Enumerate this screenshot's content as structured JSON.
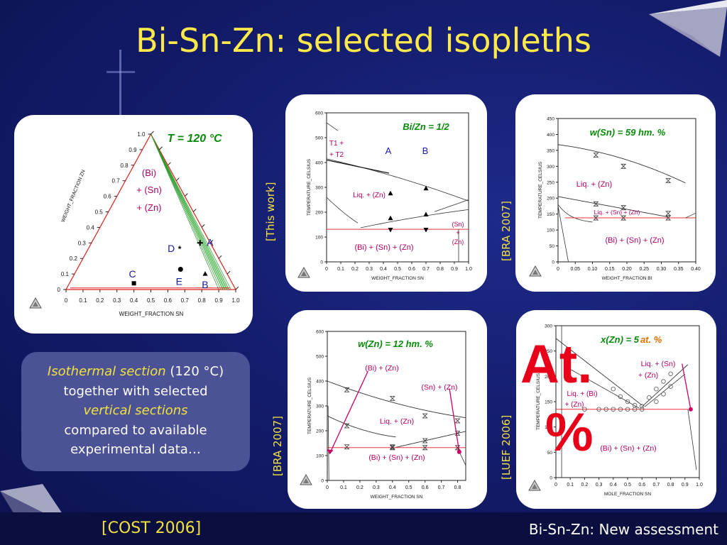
{
  "title": {
    "part1": "Bi-Sn-Zn:",
    "part2": "selected isopleths"
  },
  "citations": {
    "this_work": "[This work]",
    "bra1": "[BRA 2007]",
    "bra2": "[BRA 2007]",
    "luef": "[LUEF 2006]",
    "cost": "[COST 2006]"
  },
  "footer": "Bi-Sn-Zn: New assessment",
  "textbox": {
    "l1_italic": "Isothermal section",
    "l1_rest": " (120 °C)",
    "l2": "together with selected",
    "l3": "vertical sections",
    "l4": "compared to available",
    "l5": "experimental data…"
  },
  "stamp": {
    "line1": "At.",
    "line2": "%"
  },
  "colors": {
    "background": "#141d6e",
    "title": "#ffe84a",
    "citation": "#f2e23e",
    "green_label": "#0a8a0a",
    "phase_label": "#b00060",
    "point_label": "#1a1aa0",
    "stamp": "#e8001a",
    "red_line": "#e8333a"
  },
  "chart_data": [
    {
      "type": "ternary",
      "title": "T = 120 °C",
      "xlabel": "WEIGHT_FRACTION SN",
      "ylabel": "WEIGHT_FRACTION ZN",
      "ticks": [
        "0",
        "0.1",
        "0.2",
        "0.3",
        "0.4",
        "0.5",
        "0.6",
        "0.7",
        "0.8",
        "0.9",
        "1.0"
      ],
      "phase_labels": [
        "(Bi)",
        "+ (Sn)",
        "+ (Zn)"
      ],
      "composition_points": [
        {
          "label": "A",
          "sn": 0.64,
          "zn": 0.3
        },
        {
          "label": "B",
          "sn": 0.77,
          "zn": 0.1
        },
        {
          "label": "C",
          "sn": 0.38,
          "zn": 0.04
        },
        {
          "label": "D",
          "sn": 0.54,
          "zn": 0.26
        },
        {
          "label": "E",
          "sn": 0.61,
          "zn": 0.13
        }
      ]
    },
    {
      "type": "line",
      "title": "Bi/Zn = 1/2",
      "xlabel": "WEIGHT_FRACTION SN",
      "ylabel": "TEMPERATURE_CELSIUS",
      "xlim": [
        0,
        1
      ],
      "ylim": [
        0,
        600
      ],
      "xticks": [
        "0",
        "0.1",
        "0.2",
        "0.3",
        "0.4",
        "0.5",
        "0.6",
        "0.7",
        "0.8",
        "0.9",
        "1.0"
      ],
      "yticks": [
        "0",
        "100",
        "200",
        "300",
        "400",
        "500",
        "600"
      ],
      "point_labels": [
        "A",
        "B"
      ],
      "phase_labels": [
        "T1 +",
        "+ T2",
        "Liq. + (Zn)",
        "(Sn)",
        "+",
        "(Zn)",
        "(Bi) + (Sn) + (Zn)"
      ],
      "experimental_points": [
        {
          "x": 0.45,
          "y": 275
        },
        {
          "x": 0.7,
          "y": 295
        },
        {
          "x": 0.45,
          "y": 175
        },
        {
          "x": 0.7,
          "y": 190
        },
        {
          "x": 0.45,
          "y": 130
        },
        {
          "x": 0.7,
          "y": 130
        }
      ]
    },
    {
      "type": "line",
      "title": "w(Sn) = 59 hm. %",
      "xlabel": "WEIGHT_FRACTION BI",
      "ylabel": "TEMPERATURE_CELSIUS",
      "xlim": [
        0,
        0.4
      ],
      "ylim": [
        0,
        450
      ],
      "xticks": [
        "0",
        "0.05",
        "0.10",
        "0.15",
        "0.20",
        "0.25",
        "0.30",
        "0.35",
        "0.40"
      ],
      "yticks": [
        "0",
        "50",
        "100",
        "150",
        "200",
        "250",
        "300",
        "350",
        "400",
        "450"
      ],
      "phase_labels": [
        "Liq. + (Zn)",
        "Liq. + (Sn) + (Zn)",
        "(Bi) + (Sn) + (Zn)"
      ],
      "experimental_points": [
        {
          "x": 0.11,
          "y": 335
        },
        {
          "x": 0.19,
          "y": 300
        },
        {
          "x": 0.32,
          "y": 255
        },
        {
          "x": 0.11,
          "y": 182
        },
        {
          "x": 0.19,
          "y": 170
        },
        {
          "x": 0.32,
          "y": 152
        },
        {
          "x": 0.11,
          "y": 138
        },
        {
          "x": 0.19,
          "y": 138
        },
        {
          "x": 0.32,
          "y": 138
        }
      ]
    },
    {
      "type": "line",
      "title": "w(Zn) = 12 hm. %",
      "xlabel": "WEIGHT_FRACTION SN",
      "ylabel": "TEMPERATURE_CELSIUS",
      "xlim": [
        0,
        0.85
      ],
      "ylim": [
        0,
        600
      ],
      "xticks": [
        "0",
        "0.1",
        "0.2",
        "0.3",
        "0.4",
        "0.5",
        "0.6",
        "0.7",
        "0.8"
      ],
      "yticks": [
        "0",
        "100",
        "200",
        "300",
        "400",
        "500",
        "600"
      ],
      "phase_labels": [
        "(Bi) + (Zn)",
        "(Sn) + (Zn)",
        "Liq. + (Zn)",
        "(Bi) + (Sn) + (Zn)"
      ],
      "experimental_points": [
        {
          "x": 0.12,
          "y": 365
        },
        {
          "x": 0.4,
          "y": 330
        },
        {
          "x": 0.6,
          "y": 260
        },
        {
          "x": 0.8,
          "y": 240
        },
        {
          "x": 0.12,
          "y": 220
        },
        {
          "x": 0.4,
          "y": 135
        },
        {
          "x": 0.6,
          "y": 160
        },
        {
          "x": 0.8,
          "y": 190
        },
        {
          "x": 0.12,
          "y": 135
        },
        {
          "x": 0.4,
          "y": 132
        },
        {
          "x": 0.6,
          "y": 132
        },
        {
          "x": 0.8,
          "y": 132
        }
      ]
    },
    {
      "type": "line",
      "title": "x(Zn) = 5 at. %",
      "xlabel": "MOLE_FRACTION SN",
      "ylabel": "TEMPERATURE_CELSIUS",
      "xlim": [
        0,
        1
      ],
      "ylim": [
        0,
        300
      ],
      "xticks": [
        "0",
        "0.1",
        "0.2",
        "0.3",
        "0.4",
        "0.5",
        "0.6",
        "0.7",
        "0.8",
        "0.9",
        "1.0"
      ],
      "yticks": [
        "0",
        "50",
        "100",
        "150",
        "200",
        "250",
        "300"
      ],
      "phase_labels": [
        "Liq. + (Sn)",
        "+ (Zn)",
        "Liq. + (Bi)",
        "+ (Zn)",
        "(Bi) + (Sn) + (Zn)"
      ],
      "experimental_points": [
        {
          "x": 0.2,
          "y": 135
        },
        {
          "x": 0.3,
          "y": 135
        },
        {
          "x": 0.35,
          "y": 135
        },
        {
          "x": 0.4,
          "y": 135
        },
        {
          "x": 0.45,
          "y": 135
        },
        {
          "x": 0.5,
          "y": 135
        },
        {
          "x": 0.55,
          "y": 135
        },
        {
          "x": 0.6,
          "y": 135
        },
        {
          "x": 0.4,
          "y": 175
        },
        {
          "x": 0.45,
          "y": 160
        },
        {
          "x": 0.5,
          "y": 150
        },
        {
          "x": 0.55,
          "y": 143
        },
        {
          "x": 0.6,
          "y": 141
        },
        {
          "x": 0.65,
          "y": 158
        },
        {
          "x": 0.7,
          "y": 175
        },
        {
          "x": 0.75,
          "y": 190
        },
        {
          "x": 0.8,
          "y": 205
        },
        {
          "x": 0.7,
          "y": 150
        },
        {
          "x": 0.75,
          "y": 165
        },
        {
          "x": 0.8,
          "y": 180
        }
      ]
    }
  ]
}
